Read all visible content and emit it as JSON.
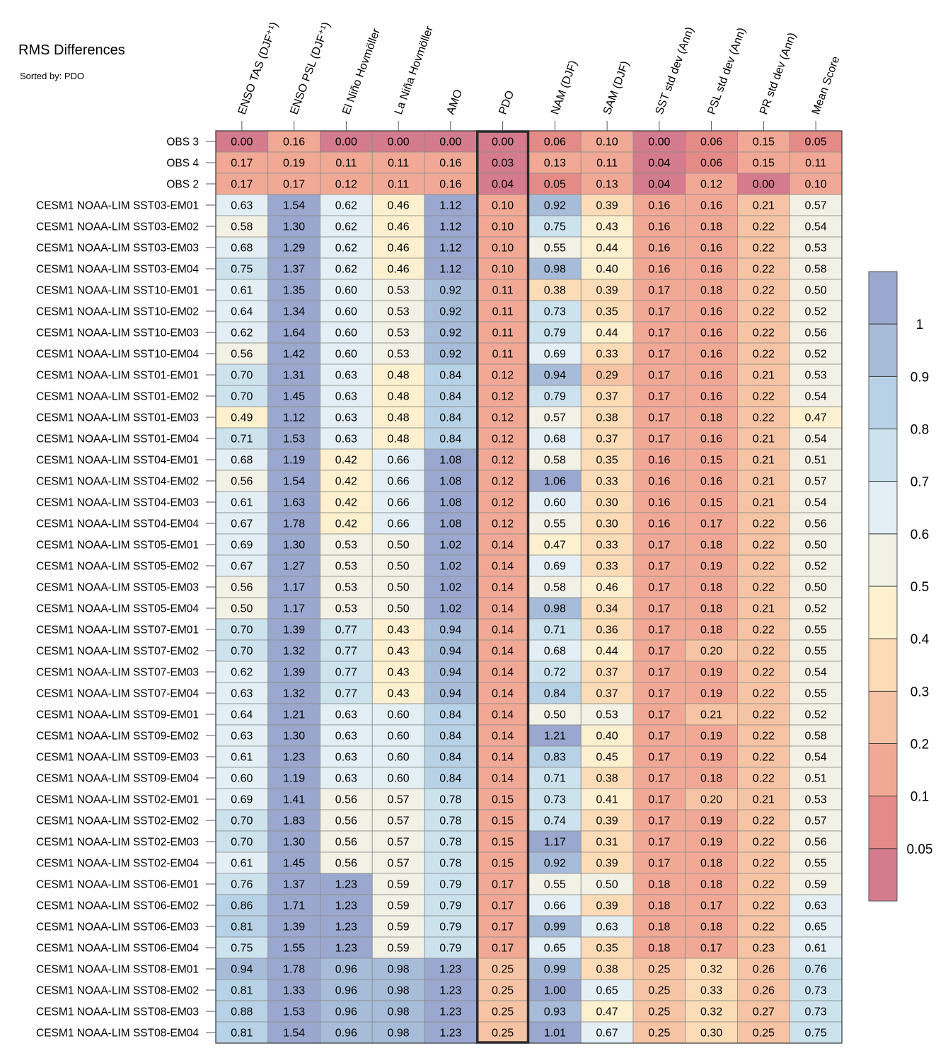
{
  "title": "RMS Differences",
  "subtitle": "Sorted by: PDO",
  "chart_data": {
    "type": "heatmap",
    "title": "RMS Differences",
    "sorted_by": "PDO",
    "highlight_column": "PDO",
    "columns": [
      "ENSO TAS (DJF⁺¹)",
      "ENSO PSL (DJF⁺¹)",
      "El Niño Hovmöller",
      "La Niña Hovmöller",
      "AMO",
      "PDO",
      "NAM (DJF)",
      "SAM (DJF)",
      "SST std dev (Ann)",
      "PSL std dev (Ann)",
      "PR std dev (Ann)",
      "Mean Score"
    ],
    "rows": [
      {
        "label": "OBS 3",
        "values": [
          "0.00",
          "0.16",
          "0.00",
          "0.00",
          "0.00",
          "0.00",
          "0.06",
          "0.10",
          "0.00",
          "0.06",
          "0.15",
          "0.05"
        ]
      },
      {
        "label": "OBS 4",
        "values": [
          "0.17",
          "0.19",
          "0.11",
          "0.11",
          "0.16",
          "0.03",
          "0.13",
          "0.11",
          "0.04",
          "0.06",
          "0.15",
          "0.11"
        ]
      },
      {
        "label": "OBS 2",
        "values": [
          "0.17",
          "0.17",
          "0.12",
          "0.11",
          "0.16",
          "0.04",
          "0.05",
          "0.13",
          "0.04",
          "0.12",
          "0.00",
          "0.10"
        ]
      },
      {
        "label": "CESM1 NOAA-LIM SST03-EM01",
        "values": [
          "0.63",
          "1.54",
          "0.62",
          "0.46",
          "1.12",
          "0.10",
          "0.92",
          "0.39",
          "0.16",
          "0.16",
          "0.21",
          "0.57"
        ]
      },
      {
        "label": "CESM1 NOAA-LIM SST03-EM02",
        "values": [
          "0.58",
          "1.30",
          "0.62",
          "0.46",
          "1.12",
          "0.10",
          "0.75",
          "0.43",
          "0.16",
          "0.18",
          "0.22",
          "0.54"
        ]
      },
      {
        "label": "CESM1 NOAA-LIM SST03-EM03",
        "values": [
          "0.68",
          "1.29",
          "0.62",
          "0.46",
          "1.12",
          "0.10",
          "0.55",
          "0.44",
          "0.16",
          "0.16",
          "0.22",
          "0.53"
        ]
      },
      {
        "label": "CESM1 NOAA-LIM SST03-EM04",
        "values": [
          "0.75",
          "1.37",
          "0.62",
          "0.46",
          "1.12",
          "0.10",
          "0.98",
          "0.40",
          "0.16",
          "0.16",
          "0.22",
          "0.58"
        ]
      },
      {
        "label": "CESM1 NOAA-LIM SST10-EM01",
        "values": [
          "0.61",
          "1.35",
          "0.60",
          "0.53",
          "0.92",
          "0.11",
          "0.38",
          "0.39",
          "0.17",
          "0.18",
          "0.22",
          "0.50"
        ]
      },
      {
        "label": "CESM1 NOAA-LIM SST10-EM02",
        "values": [
          "0.64",
          "1.34",
          "0.60",
          "0.53",
          "0.92",
          "0.11",
          "0.73",
          "0.35",
          "0.17",
          "0.16",
          "0.22",
          "0.52"
        ]
      },
      {
        "label": "CESM1 NOAA-LIM SST10-EM03",
        "values": [
          "0.62",
          "1.64",
          "0.60",
          "0.53",
          "0.92",
          "0.11",
          "0.79",
          "0.44",
          "0.17",
          "0.16",
          "0.22",
          "0.56"
        ]
      },
      {
        "label": "CESM1 NOAA-LIM SST10-EM04",
        "values": [
          "0.56",
          "1.42",
          "0.60",
          "0.53",
          "0.92",
          "0.11",
          "0.69",
          "0.33",
          "0.17",
          "0.16",
          "0.22",
          "0.52"
        ]
      },
      {
        "label": "CESM1 NOAA-LIM SST01-EM01",
        "values": [
          "0.70",
          "1.31",
          "0.63",
          "0.48",
          "0.84",
          "0.12",
          "0.94",
          "0.29",
          "0.17",
          "0.16",
          "0.21",
          "0.53"
        ]
      },
      {
        "label": "CESM1 NOAA-LIM SST01-EM02",
        "values": [
          "0.70",
          "1.45",
          "0.63",
          "0.48",
          "0.84",
          "0.12",
          "0.79",
          "0.37",
          "0.17",
          "0.16",
          "0.22",
          "0.54"
        ]
      },
      {
        "label": "CESM1 NOAA-LIM SST01-EM03",
        "values": [
          "0.49",
          "1.12",
          "0.63",
          "0.48",
          "0.84",
          "0.12",
          "0.57",
          "0.38",
          "0.17",
          "0.18",
          "0.22",
          "0.47"
        ]
      },
      {
        "label": "CESM1 NOAA-LIM SST01-EM04",
        "values": [
          "0.71",
          "1.53",
          "0.63",
          "0.48",
          "0.84",
          "0.12",
          "0.68",
          "0.37",
          "0.17",
          "0.16",
          "0.21",
          "0.54"
        ]
      },
      {
        "label": "CESM1 NOAA-LIM SST04-EM01",
        "values": [
          "0.68",
          "1.19",
          "0.42",
          "0.66",
          "1.08",
          "0.12",
          "0.58",
          "0.35",
          "0.16",
          "0.15",
          "0.21",
          "0.51"
        ]
      },
      {
        "label": "CESM1 NOAA-LIM SST04-EM02",
        "values": [
          "0.56",
          "1.54",
          "0.42",
          "0.66",
          "1.08",
          "0.12",
          "1.06",
          "0.33",
          "0.16",
          "0.16",
          "0.21",
          "0.57"
        ]
      },
      {
        "label": "CESM1 NOAA-LIM SST04-EM03",
        "values": [
          "0.61",
          "1.63",
          "0.42",
          "0.66",
          "1.08",
          "0.12",
          "0.60",
          "0.30",
          "0.16",
          "0.15",
          "0.21",
          "0.54"
        ]
      },
      {
        "label": "CESM1 NOAA-LIM SST04-EM04",
        "values": [
          "0.67",
          "1.78",
          "0.42",
          "0.66",
          "1.08",
          "0.12",
          "0.55",
          "0.30",
          "0.16",
          "0.17",
          "0.22",
          "0.56"
        ]
      },
      {
        "label": "CESM1 NOAA-LIM SST05-EM01",
        "values": [
          "0.69",
          "1.30",
          "0.53",
          "0.50",
          "1.02",
          "0.14",
          "0.47",
          "0.33",
          "0.17",
          "0.18",
          "0.22",
          "0.50"
        ]
      },
      {
        "label": "CESM1 NOAA-LIM SST05-EM02",
        "values": [
          "0.67",
          "1.27",
          "0.53",
          "0.50",
          "1.02",
          "0.14",
          "0.69",
          "0.33",
          "0.17",
          "0.19",
          "0.22",
          "0.52"
        ]
      },
      {
        "label": "CESM1 NOAA-LIM SST05-EM03",
        "values": [
          "0.56",
          "1.17",
          "0.53",
          "0.50",
          "1.02",
          "0.14",
          "0.58",
          "0.46",
          "0.17",
          "0.18",
          "0.22",
          "0.50"
        ]
      },
      {
        "label": "CESM1 NOAA-LIM SST05-EM04",
        "values": [
          "0.50",
          "1.17",
          "0.53",
          "0.50",
          "1.02",
          "0.14",
          "0.98",
          "0.34",
          "0.17",
          "0.18",
          "0.21",
          "0.52"
        ]
      },
      {
        "label": "CESM1 NOAA-LIM SST07-EM01",
        "values": [
          "0.70",
          "1.39",
          "0.77",
          "0.43",
          "0.94",
          "0.14",
          "0.71",
          "0.36",
          "0.17",
          "0.18",
          "0.22",
          "0.55"
        ]
      },
      {
        "label": "CESM1 NOAA-LIM SST07-EM02",
        "values": [
          "0.70",
          "1.32",
          "0.77",
          "0.43",
          "0.94",
          "0.14",
          "0.68",
          "0.44",
          "0.17",
          "0.20",
          "0.22",
          "0.55"
        ]
      },
      {
        "label": "CESM1 NOAA-LIM SST07-EM03",
        "values": [
          "0.62",
          "1.39",
          "0.77",
          "0.43",
          "0.94",
          "0.14",
          "0.72",
          "0.37",
          "0.17",
          "0.19",
          "0.22",
          "0.54"
        ]
      },
      {
        "label": "CESM1 NOAA-LIM SST07-EM04",
        "values": [
          "0.63",
          "1.32",
          "0.77",
          "0.43",
          "0.94",
          "0.14",
          "0.84",
          "0.37",
          "0.17",
          "0.19",
          "0.22",
          "0.55"
        ]
      },
      {
        "label": "CESM1 NOAA-LIM SST09-EM01",
        "values": [
          "0.64",
          "1.21",
          "0.63",
          "0.60",
          "0.84",
          "0.14",
          "0.50",
          "0.53",
          "0.17",
          "0.21",
          "0.22",
          "0.52"
        ]
      },
      {
        "label": "CESM1 NOAA-LIM SST09-EM02",
        "values": [
          "0.63",
          "1.30",
          "0.63",
          "0.60",
          "0.84",
          "0.14",
          "1.21",
          "0.40",
          "0.17",
          "0.19",
          "0.22",
          "0.58"
        ]
      },
      {
        "label": "CESM1 NOAA-LIM SST09-EM03",
        "values": [
          "0.61",
          "1.23",
          "0.63",
          "0.60",
          "0.84",
          "0.14",
          "0.83",
          "0.45",
          "0.17",
          "0.19",
          "0.22",
          "0.54"
        ]
      },
      {
        "label": "CESM1 NOAA-LIM SST09-EM04",
        "values": [
          "0.60",
          "1.19",
          "0.63",
          "0.60",
          "0.84",
          "0.14",
          "0.71",
          "0.38",
          "0.17",
          "0.18",
          "0.22",
          "0.51"
        ]
      },
      {
        "label": "CESM1 NOAA-LIM SST02-EM01",
        "values": [
          "0.69",
          "1.41",
          "0.56",
          "0.57",
          "0.78",
          "0.15",
          "0.73",
          "0.41",
          "0.17",
          "0.20",
          "0.21",
          "0.53"
        ]
      },
      {
        "label": "CESM1 NOAA-LIM SST02-EM02",
        "values": [
          "0.70",
          "1.83",
          "0.56",
          "0.57",
          "0.78",
          "0.15",
          "0.74",
          "0.39",
          "0.17",
          "0.19",
          "0.22",
          "0.57"
        ]
      },
      {
        "label": "CESM1 NOAA-LIM SST02-EM03",
        "values": [
          "0.70",
          "1.30",
          "0.56",
          "0.57",
          "0.78",
          "0.15",
          "1.17",
          "0.31",
          "0.17",
          "0.19",
          "0.22",
          "0.56"
        ]
      },
      {
        "label": "CESM1 NOAA-LIM SST02-EM04",
        "values": [
          "0.61",
          "1.45",
          "0.56",
          "0.57",
          "0.78",
          "0.15",
          "0.92",
          "0.39",
          "0.17",
          "0.18",
          "0.22",
          "0.55"
        ]
      },
      {
        "label": "CESM1 NOAA-LIM SST06-EM01",
        "values": [
          "0.76",
          "1.37",
          "1.23",
          "0.59",
          "0.79",
          "0.17",
          "0.55",
          "0.50",
          "0.18",
          "0.18",
          "0.22",
          "0.59"
        ]
      },
      {
        "label": "CESM1 NOAA-LIM SST06-EM02",
        "values": [
          "0.86",
          "1.71",
          "1.23",
          "0.59",
          "0.79",
          "0.17",
          "0.66",
          "0.39",
          "0.18",
          "0.17",
          "0.22",
          "0.63"
        ]
      },
      {
        "label": "CESM1 NOAA-LIM SST06-EM03",
        "values": [
          "0.81",
          "1.39",
          "1.23",
          "0.59",
          "0.79",
          "0.17",
          "0.99",
          "0.63",
          "0.18",
          "0.18",
          "0.22",
          "0.65"
        ]
      },
      {
        "label": "CESM1 NOAA-LIM SST06-EM04",
        "values": [
          "0.75",
          "1.55",
          "1.23",
          "0.59",
          "0.79",
          "0.17",
          "0.65",
          "0.35",
          "0.18",
          "0.17",
          "0.23",
          "0.61"
        ]
      },
      {
        "label": "CESM1 NOAA-LIM SST08-EM01",
        "values": [
          "0.94",
          "1.78",
          "0.96",
          "0.98",
          "1.23",
          "0.25",
          "0.99",
          "0.38",
          "0.25",
          "0.32",
          "0.26",
          "0.76"
        ]
      },
      {
        "label": "CESM1 NOAA-LIM SST08-EM02",
        "values": [
          "0.81",
          "1.33",
          "0.96",
          "0.98",
          "1.23",
          "0.25",
          "1.00",
          "0.65",
          "0.25",
          "0.33",
          "0.26",
          "0.73"
        ]
      },
      {
        "label": "CESM1 NOAA-LIM SST08-EM03",
        "values": [
          "0.88",
          "1.53",
          "0.96",
          "0.98",
          "1.23",
          "0.25",
          "0.93",
          "0.47",
          "0.25",
          "0.32",
          "0.27",
          "0.73"
        ]
      },
      {
        "label": "CESM1 NOAA-LIM SST08-EM04",
        "values": [
          "0.81",
          "1.54",
          "0.96",
          "0.98",
          "1.23",
          "0.25",
          "1.01",
          "0.67",
          "0.25",
          "0.30",
          "0.25",
          "0.75"
        ]
      }
    ],
    "colorbar": {
      "levels": [
        0.05,
        0.1,
        0.2,
        0.3,
        0.4,
        0.5,
        0.6,
        0.7,
        0.8,
        0.9,
        1
      ],
      "tick_labels": [
        "0.05",
        "0.1",
        "0.2",
        "0.3",
        "0.4",
        "0.5",
        "0.6",
        "0.7",
        "0.8",
        "0.9",
        "1"
      ],
      "colors": [
        "#d47b8d",
        "#e48b88",
        "#f1a995",
        "#f6c4a4",
        "#fcdcb6",
        "#fdf0cf",
        "#f2f1e6",
        "#e3eff4",
        "#cce3ee",
        "#b7d2e6",
        "#a6bcd9",
        "#9aa8cf"
      ]
    }
  }
}
